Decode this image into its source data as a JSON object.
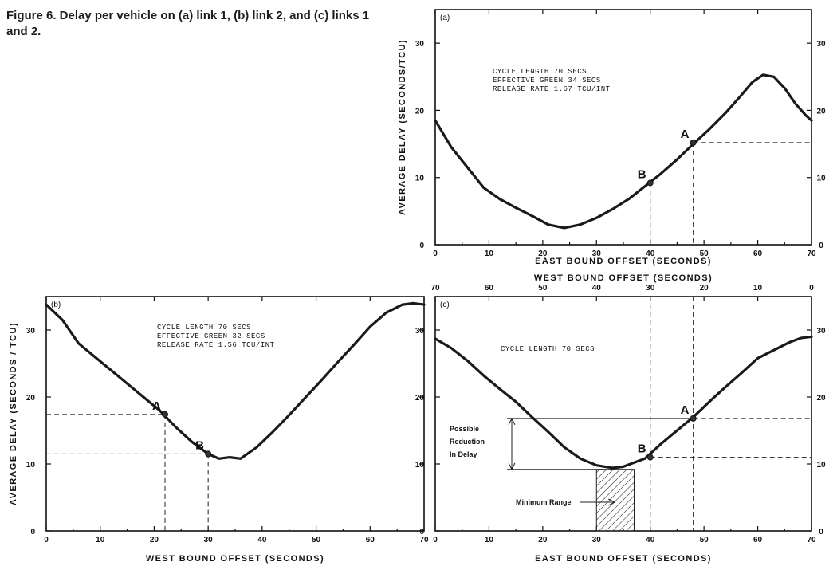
{
  "caption": "Figure 6.  Delay per vehicle on (a) link 1, (b) link 2, and (c) links 1 and 2.",
  "chart_data": [
    {
      "id": "a",
      "panel_label": "(a)",
      "type": "line",
      "xlabel": "EAST BOUND OFFSET (SECONDS)",
      "ylabel": "AVERAGE DELAY (SECONDS/TCU)",
      "xlim": [
        0,
        70
      ],
      "ylim": [
        0,
        35
      ],
      "xticks": [
        0,
        10,
        20,
        30,
        40,
        50,
        60,
        70
      ],
      "yticks": [
        0,
        10,
        20,
        30
      ],
      "params": [
        "CYCLE LENGTH      70 SECS",
        "EFFECTIVE GREEN   34 SECS",
        "RELEASE RATE   1.67 TCU/INT"
      ],
      "x": [
        0,
        3,
        6,
        9,
        12,
        15,
        18,
        21,
        24,
        27,
        30,
        33,
        36,
        39,
        42,
        45,
        48,
        51,
        54,
        57,
        59,
        61,
        63,
        65,
        67,
        69,
        70
      ],
      "y": [
        18.5,
        14.5,
        11.5,
        8.5,
        6.8,
        5.5,
        4.3,
        3.0,
        2.5,
        3.0,
        4.0,
        5.3,
        6.8,
        8.7,
        10.6,
        12.7,
        15.0,
        17.2,
        19.6,
        22.3,
        24.2,
        25.3,
        25.0,
        23.3,
        21.0,
        19.2,
        18.5
      ],
      "points": [
        {
          "label": "A",
          "x": 48,
          "y": 15.2
        },
        {
          "label": "B",
          "x": 40,
          "y": 9.2
        }
      ]
    },
    {
      "id": "b",
      "panel_label": "(b)",
      "type": "line",
      "xlabel": "WEST BOUND OFFSET (SECONDS)",
      "ylabel": "AVERAGE DELAY (SECONDS / TCU)",
      "xlim": [
        0,
        70
      ],
      "ylim": [
        0,
        35
      ],
      "xticks": [
        0,
        10,
        20,
        30,
        40,
        50,
        60,
        70
      ],
      "yticks": [
        0,
        10,
        20,
        30
      ],
      "params": [
        "CYCLE LENGTH      70 SECS",
        "EFFECTIVE GREEN   32 SECS",
        "RELEASE RATE   1.56 TCU/INT"
      ],
      "x": [
        0,
        3,
        6,
        9,
        12,
        15,
        18,
        21,
        24,
        27,
        30,
        32,
        34,
        36,
        39,
        42,
        45,
        48,
        51,
        54,
        57,
        60,
        63,
        66,
        68,
        70
      ],
      "y": [
        33.8,
        31.5,
        28.0,
        26.0,
        24.0,
        22.0,
        20.0,
        18.0,
        15.5,
        13.3,
        11.5,
        10.8,
        11.0,
        10.8,
        12.5,
        14.8,
        17.3,
        19.9,
        22.5,
        25.2,
        27.8,
        30.5,
        32.6,
        33.8,
        34.0,
        33.8
      ],
      "points": [
        {
          "label": "A",
          "x": 22,
          "y": 17.4
        },
        {
          "label": "B",
          "x": 30,
          "y": 11.5
        }
      ]
    },
    {
      "id": "c",
      "panel_label": "(c)",
      "type": "line",
      "xlabel": "EAST BOUND OFFSET (SECONDS)",
      "x2label": "WEST BOUND OFFSET (SECONDS)",
      "xlim": [
        0,
        70
      ],
      "ylim": [
        0,
        35
      ],
      "xticks": [
        0,
        10,
        20,
        30,
        40,
        50,
        60,
        70
      ],
      "x2ticks": [
        70,
        60,
        50,
        40,
        30,
        20,
        10,
        0
      ],
      "yticks": [
        0,
        10,
        20,
        30
      ],
      "params": [
        "CYCLE LENGTH  70 SECS"
      ],
      "x": [
        0,
        3,
        6,
        9,
        12,
        15,
        18,
        21,
        24,
        27,
        30,
        33,
        35,
        37,
        39,
        42,
        45,
        48,
        51,
        54,
        57,
        60,
        63,
        66,
        68,
        70
      ],
      "y": [
        28.7,
        27.3,
        25.4,
        23.2,
        21.2,
        19.3,
        17.0,
        14.8,
        12.5,
        10.8,
        9.8,
        9.4,
        9.6,
        10.2,
        10.8,
        13.0,
        15.0,
        17.0,
        19.3,
        21.5,
        23.6,
        25.8,
        27.0,
        28.2,
        28.8,
        29.0
      ],
      "points": [
        {
          "label": "A",
          "x": 48,
          "y": 16.8
        },
        {
          "label": "B",
          "x": 40,
          "y": 11.0
        }
      ],
      "annotations": {
        "possible_reduction": [
          "Possible",
          "Reduction",
          "In Delay"
        ],
        "minimum_range": "Minimum Range",
        "minimum_range_x": [
          30,
          37
        ],
        "reduction_y": [
          9.2,
          16.8
        ]
      }
    }
  ]
}
